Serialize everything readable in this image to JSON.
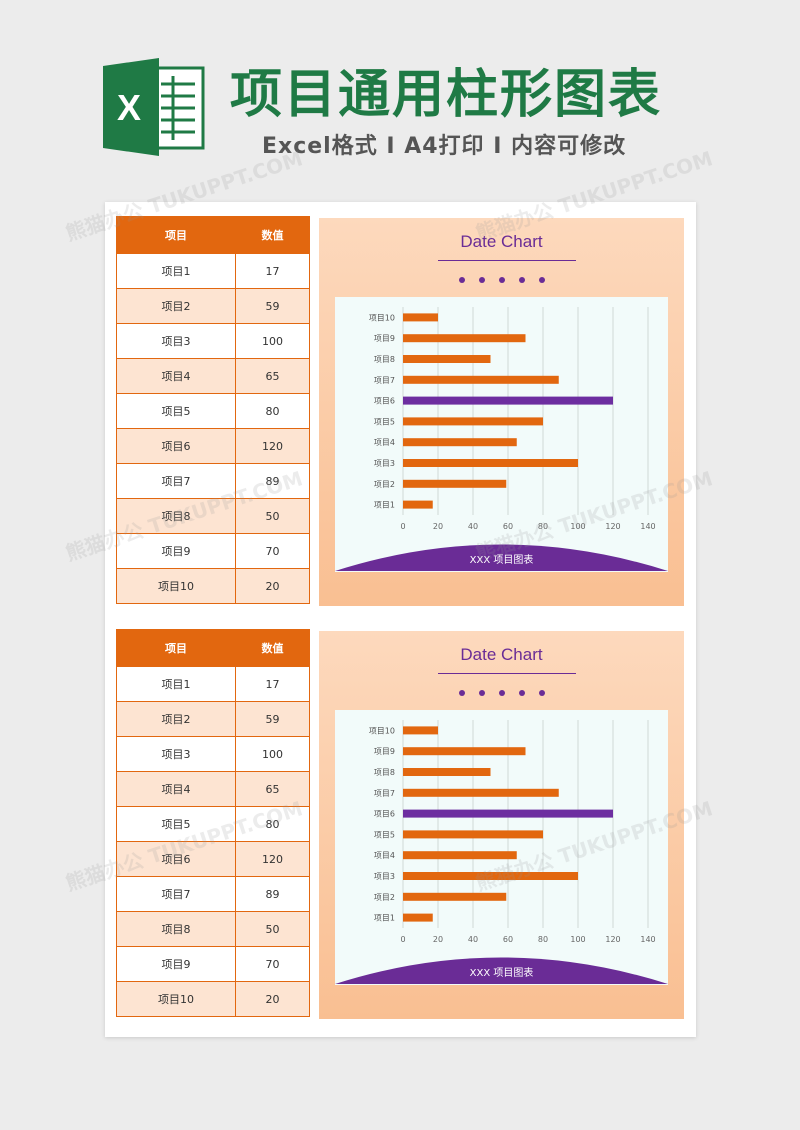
{
  "header": {
    "title": "项目通用柱形图表",
    "subtitle": "Excel格式 I A4打印 I 内容可修改",
    "logo_letter": "X"
  },
  "watermark": "熊猫办公 TUKUPPT.COM",
  "colors": {
    "brand_green": "#1f7a45",
    "orange": "#e2670f",
    "purple": "#6a2c96",
    "highlight": "#6d2ea0"
  },
  "blocks": [
    {
      "table": {
        "headers": [
          "项目",
          "数值"
        ],
        "rows": [
          [
            "项目1",
            "17"
          ],
          [
            "项目2",
            "59"
          ],
          [
            "项目3",
            "100"
          ],
          [
            "项目4",
            "65"
          ],
          [
            "项目5",
            "80"
          ],
          [
            "项目6",
            "120"
          ],
          [
            "项目7",
            "89"
          ],
          [
            "项目8",
            "50"
          ],
          [
            "项目9",
            "70"
          ],
          [
            "项目10",
            "20"
          ]
        ]
      },
      "chart": {
        "title": "Date Chart",
        "footer": "XXX  项目图表"
      }
    },
    {
      "table": {
        "headers": [
          "项目",
          "数值"
        ],
        "rows": [
          [
            "项目1",
            "17"
          ],
          [
            "项目2",
            "59"
          ],
          [
            "项目3",
            "100"
          ],
          [
            "项目4",
            "65"
          ],
          [
            "项目5",
            "80"
          ],
          [
            "项目6",
            "120"
          ],
          [
            "项目7",
            "89"
          ],
          [
            "项目8",
            "50"
          ],
          [
            "项目9",
            "70"
          ],
          [
            "项目10",
            "20"
          ]
        ]
      },
      "chart": {
        "title": "Date Chart",
        "footer": "XXX  项目图表"
      }
    }
  ],
  "chart_data": [
    {
      "type": "bar",
      "orientation": "horizontal",
      "title": "Date Chart",
      "categories": [
        "项目1",
        "项目2",
        "项目3",
        "项目4",
        "项目5",
        "项目6",
        "项目7",
        "项目8",
        "项目9",
        "项目10"
      ],
      "values": [
        17,
        59,
        100,
        65,
        80,
        120,
        89,
        50,
        70,
        20
      ],
      "highlight": "项目6",
      "xlim": [
        0,
        140
      ],
      "xticks": [
        "0",
        "20",
        "40",
        "60",
        "80",
        "100",
        "120",
        "140"
      ],
      "grid": "vertical",
      "legend": "none"
    },
    {
      "type": "bar",
      "orientation": "horizontal",
      "title": "Date Chart",
      "categories": [
        "项目1",
        "项目2",
        "项目3",
        "项目4",
        "项目5",
        "项目6",
        "项目7",
        "项目8",
        "项目9",
        "项目10"
      ],
      "values": [
        17,
        59,
        100,
        65,
        80,
        120,
        89,
        50,
        70,
        20
      ],
      "highlight": "项目6",
      "xlim": [
        0,
        140
      ],
      "xticks": [
        "0",
        "20",
        "40",
        "60",
        "80",
        "100",
        "120",
        "140"
      ],
      "grid": "vertical",
      "legend": "none"
    }
  ]
}
